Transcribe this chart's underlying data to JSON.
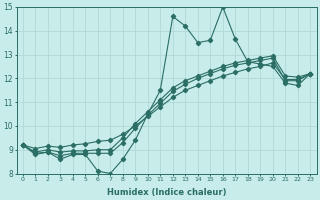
{
  "xlabel": "Humidex (Indice chaleur)",
  "ylabel": "",
  "bg_color": "#c8ece9",
  "grid_color": "#b0d8d4",
  "line_color": "#2a6e65",
  "xlim": [
    -0.5,
    23.5
  ],
  "ylim": [
    8,
    15
  ],
  "xticks": [
    0,
    1,
    2,
    3,
    4,
    5,
    6,
    7,
    8,
    9,
    10,
    11,
    12,
    13,
    14,
    15,
    16,
    17,
    18,
    19,
    20,
    21,
    22,
    23
  ],
  "yticks": [
    8,
    9,
    10,
    11,
    12,
    13,
    14,
    15
  ],
  "main_y": [
    9.2,
    8.8,
    8.9,
    8.6,
    8.8,
    8.8,
    8.1,
    8.0,
    8.6,
    9.4,
    10.5,
    11.5,
    14.6,
    14.2,
    13.5,
    13.6,
    15.0,
    13.65,
    12.7,
    12.6,
    12.5,
    11.8,
    11.7,
    12.2
  ],
  "line2_y": [
    9.2,
    8.85,
    8.9,
    8.75,
    8.85,
    8.85,
    8.85,
    8.85,
    9.3,
    9.9,
    10.45,
    10.95,
    11.45,
    11.75,
    12.0,
    12.2,
    12.4,
    12.55,
    12.65,
    12.75,
    12.85,
    11.9,
    11.9,
    12.2
  ],
  "line3_y": [
    9.2,
    8.9,
    9.0,
    8.9,
    8.95,
    8.95,
    9.0,
    9.0,
    9.5,
    10.1,
    10.6,
    11.1,
    11.6,
    11.9,
    12.1,
    12.3,
    12.5,
    12.65,
    12.75,
    12.85,
    12.95,
    12.1,
    12.05,
    12.2
  ],
  "line4_y": [
    9.2,
    9.05,
    9.15,
    9.1,
    9.2,
    9.25,
    9.35,
    9.4,
    9.65,
    10.0,
    10.4,
    10.8,
    11.2,
    11.5,
    11.7,
    11.9,
    12.1,
    12.25,
    12.4,
    12.5,
    12.65,
    11.95,
    11.95,
    12.2
  ]
}
